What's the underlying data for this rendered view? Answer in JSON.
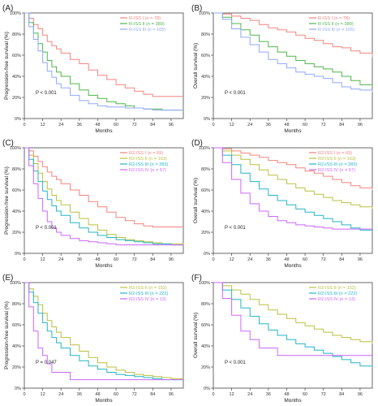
{
  "figure": {
    "x_ticks": [
      0,
      12,
      24,
      36,
      48,
      60,
      72,
      84,
      96
    ],
    "y_ticks": [
      "0%",
      "20%",
      "40%",
      "60%",
      "80%",
      "100%"
    ],
    "colors": {
      "salmon": "#f4837d",
      "green": "#4cb749",
      "blue": "#8fa8ff",
      "cyan": "#22b5c8",
      "olive": "#b9c13f",
      "purple": "#cc66ff"
    }
  },
  "chart_data": [
    {
      "panel": "(A)",
      "type": "line",
      "xlabel": "Months",
      "ylabel": "Progression-free survival (%)",
      "xlim": [
        0,
        104
      ],
      "ylim": [
        0,
        100
      ],
      "pvalue": "P < 0.001",
      "series": [
        {
          "name": "R-ISS I (n = 78)",
          "color": "#f4837d",
          "x": [
            0,
            3,
            6,
            9,
            12,
            15,
            18,
            21,
            24,
            30,
            36,
            42,
            48,
            54,
            60,
            66,
            72,
            78,
            84,
            90,
            96,
            104
          ],
          "y": [
            100,
            95,
            89,
            85,
            79,
            73,
            69,
            66,
            62,
            56,
            52,
            46,
            41,
            37,
            32,
            29,
            26,
            23,
            21,
            21,
            21,
            21
          ]
        },
        {
          "name": "R-ISS II (n = 389)",
          "color": "#4cb749",
          "x": [
            0,
            3,
            6,
            9,
            12,
            15,
            18,
            21,
            24,
            30,
            36,
            42,
            48,
            54,
            60,
            66,
            72,
            78,
            84,
            90,
            96,
            104
          ],
          "y": [
            100,
            91,
            81,
            71,
            63,
            55,
            49,
            44,
            40,
            33,
            27,
            22,
            19,
            16,
            14,
            12,
            10,
            9,
            9,
            8,
            8,
            7
          ]
        },
        {
          "name": "R-ISS III (n = 105)",
          "color": "#8fa8ff",
          "x": [
            0,
            3,
            6,
            9,
            12,
            15,
            18,
            21,
            24,
            30,
            36,
            42,
            48,
            54,
            60,
            66,
            72,
            78,
            84,
            90,
            96,
            104
          ],
          "y": [
            100,
            87,
            75,
            64,
            53,
            45,
            39,
            33,
            29,
            22,
            17,
            14,
            12,
            11,
            11,
            10,
            10,
            9,
            8,
            8,
            8,
            8
          ]
        }
      ]
    },
    {
      "panel": "(B)",
      "type": "line",
      "xlabel": "Months",
      "ylabel": "Overall survival (%)",
      "xlim": [
        0,
        104
      ],
      "ylim": [
        0,
        100
      ],
      "pvalue": "P < 0.001",
      "series": [
        {
          "name": "R-ISS I (n = 78)",
          "color": "#f4837d",
          "x": [
            0,
            6,
            12,
            18,
            24,
            30,
            36,
            42,
            48,
            54,
            60,
            66,
            72,
            78,
            84,
            90,
            96,
            104
          ],
          "y": [
            100,
            99,
            97,
            95,
            93,
            89,
            86,
            84,
            82,
            79,
            76,
            74,
            71,
            68,
            67,
            64,
            62,
            58
          ]
        },
        {
          "name": "R-ISS II (n = 389)",
          "color": "#4cb749",
          "x": [
            0,
            6,
            12,
            18,
            24,
            30,
            36,
            42,
            48,
            54,
            60,
            66,
            72,
            78,
            84,
            90,
            96,
            104
          ],
          "y": [
            100,
            96,
            90,
            84,
            79,
            73,
            68,
            63,
            59,
            55,
            52,
            49,
            47,
            44,
            40,
            36,
            32,
            31
          ]
        },
        {
          "name": "R-ISS III (n = 105)",
          "color": "#8fa8ff",
          "x": [
            0,
            6,
            12,
            18,
            24,
            30,
            36,
            42,
            48,
            54,
            60,
            66,
            72,
            78,
            84,
            90,
            96,
            104
          ],
          "y": [
            100,
            94,
            85,
            77,
            70,
            63,
            56,
            52,
            48,
            44,
            42,
            40,
            38,
            34,
            30,
            28,
            27,
            25
          ]
        }
      ]
    },
    {
      "panel": "(C)",
      "type": "line",
      "xlabel": "Months",
      "ylabel": "Progression-free survival (%)",
      "xlim": [
        0,
        104
      ],
      "ylim": [
        0,
        100
      ],
      "pvalue": "P < 0.001",
      "series": [
        {
          "name": "R2-ISS I (n = 69)",
          "color": "#f4837d",
          "x": [
            0,
            3,
            6,
            9,
            12,
            15,
            18,
            21,
            24,
            30,
            36,
            42,
            48,
            54,
            60,
            66,
            72,
            78,
            84,
            90,
            96,
            104
          ],
          "y": [
            100,
            97,
            92,
            87,
            82,
            77,
            73,
            70,
            66,
            60,
            55,
            49,
            44,
            39,
            34,
            31,
            28,
            26,
            25,
            25,
            25,
            25
          ]
        },
        {
          "name": "R2-ISS II (n = 163)",
          "color": "#b9c13f",
          "x": [
            0,
            3,
            6,
            9,
            12,
            15,
            18,
            21,
            24,
            30,
            36,
            42,
            48,
            54,
            60,
            66,
            72,
            78,
            84,
            90,
            96,
            104
          ],
          "y": [
            100,
            93,
            85,
            76,
            68,
            61,
            55,
            50,
            46,
            39,
            33,
            27,
            22,
            18,
            15,
            13,
            12,
            11,
            10,
            9,
            9,
            8
          ]
        },
        {
          "name": "R2-ISS III (n = 283)",
          "color": "#22b5c8",
          "x": [
            0,
            3,
            6,
            9,
            12,
            15,
            18,
            21,
            24,
            30,
            36,
            42,
            48,
            54,
            60,
            66,
            72,
            78,
            84,
            90,
            96,
            104
          ],
          "y": [
            100,
            89,
            78,
            68,
            59,
            51,
            45,
            40,
            36,
            29,
            24,
            20,
            17,
            15,
            13,
            12,
            11,
            10,
            9,
            9,
            8,
            8
          ]
        },
        {
          "name": "R2-ISS IV (n = 57)",
          "color": "#cc66ff",
          "x": [
            0,
            3,
            6,
            9,
            12,
            15,
            18,
            21,
            24,
            30,
            36,
            42,
            48,
            54,
            60,
            66,
            72,
            78,
            84,
            90,
            96,
            104
          ],
          "y": [
            100,
            83,
            66,
            52,
            40,
            30,
            24,
            20,
            17,
            14,
            12,
            11,
            10,
            9,
            8,
            8,
            8,
            8,
            8,
            8,
            8,
            8
          ]
        }
      ]
    },
    {
      "panel": "(D)",
      "type": "line",
      "xlabel": "Months",
      "ylabel": "Overall survival (%)",
      "xlim": [
        0,
        104
      ],
      "ylim": [
        0,
        100
      ],
      "pvalue": "P < 0.001",
      "series": [
        {
          "name": "R2-ISS I (n = 69)",
          "color": "#f4837d",
          "x": [
            0,
            6,
            12,
            18,
            24,
            30,
            36,
            42,
            48,
            54,
            60,
            66,
            72,
            78,
            84,
            90,
            96,
            104
          ],
          "y": [
            100,
            99,
            97,
            95,
            93,
            91,
            88,
            86,
            84,
            81,
            78,
            76,
            73,
            70,
            67,
            64,
            62,
            60
          ]
        },
        {
          "name": "R2-ISS II (n = 163)",
          "color": "#b9c13f",
          "x": [
            0,
            6,
            12,
            18,
            24,
            30,
            36,
            42,
            48,
            54,
            60,
            66,
            72,
            78,
            84,
            90,
            96,
            104
          ],
          "y": [
            100,
            97,
            93,
            89,
            84,
            79,
            74,
            70,
            66,
            62,
            59,
            56,
            53,
            50,
            48,
            46,
            44,
            42
          ]
        },
        {
          "name": "R2-ISS III (n = 283)",
          "color": "#22b5c8",
          "x": [
            0,
            6,
            12,
            18,
            24,
            30,
            36,
            42,
            48,
            54,
            60,
            66,
            72,
            78,
            84,
            90,
            96,
            104
          ],
          "y": [
            100,
            93,
            84,
            76,
            68,
            61,
            55,
            50,
            46,
            42,
            39,
            36,
            33,
            30,
            27,
            24,
            22,
            22
          ]
        },
        {
          "name": "R2-ISS IV (n = 57)",
          "color": "#cc66ff",
          "x": [
            0,
            6,
            12,
            18,
            24,
            30,
            36,
            42,
            48,
            54,
            60,
            66,
            72,
            78,
            84,
            90,
            96,
            104
          ],
          "y": [
            100,
            86,
            70,
            57,
            47,
            40,
            35,
            31,
            29,
            27,
            26,
            25,
            24,
            23,
            23,
            23,
            23,
            23
          ]
        }
      ]
    },
    {
      "panel": "(E)",
      "type": "line",
      "xlabel": "Months",
      "ylabel": "Progression-free survival (%)",
      "xlim": [
        0,
        104
      ],
      "ylim": [
        0,
        100
      ],
      "pvalue": "P = 0.047",
      "series": [
        {
          "name": "R2-ISS II (n = 152)",
          "color": "#b9c13f",
          "x": [
            0,
            3,
            6,
            9,
            12,
            15,
            18,
            21,
            24,
            30,
            36,
            42,
            48,
            54,
            60,
            66,
            72,
            78,
            84,
            90,
            96,
            104
          ],
          "y": [
            100,
            94,
            87,
            79,
            71,
            64,
            58,
            53,
            48,
            41,
            35,
            29,
            24,
            20,
            17,
            15,
            13,
            12,
            11,
            10,
            9,
            9
          ]
        },
        {
          "name": "R2-ISS III (n = 222)",
          "color": "#22b5c8",
          "x": [
            0,
            3,
            6,
            9,
            12,
            15,
            18,
            21,
            24,
            30,
            36,
            42,
            48,
            54,
            60,
            66,
            72,
            78,
            84,
            90,
            96,
            104
          ],
          "y": [
            100,
            91,
            81,
            71,
            62,
            54,
            48,
            43,
            38,
            31,
            26,
            21,
            18,
            15,
            13,
            12,
            11,
            10,
            9,
            8,
            8,
            8
          ]
        },
        {
          "name": "R2-ISS IV (n = 13)",
          "color": "#cc66ff",
          "x": [
            0,
            3,
            6,
            9,
            12,
            15,
            18,
            21,
            24,
            30,
            36,
            42,
            48,
            54,
            60,
            66,
            72,
            78,
            84,
            90,
            96,
            104
          ],
          "y": [
            100,
            77,
            54,
            38,
            31,
            23,
            15,
            15,
            15,
            8,
            8,
            8,
            8,
            8,
            8,
            8,
            8,
            8,
            8,
            8,
            8,
            8
          ]
        }
      ]
    },
    {
      "panel": "(F)",
      "type": "line",
      "xlabel": "Months",
      "ylabel": "Overall survival (%)",
      "xlim": [
        0,
        104
      ],
      "ylim": [
        0,
        100
      ],
      "pvalue": "P < 0.001",
      "series": [
        {
          "name": "R2-ISS II (n = 152)",
          "color": "#b9c13f",
          "x": [
            0,
            6,
            12,
            18,
            24,
            30,
            36,
            42,
            48,
            54,
            60,
            66,
            72,
            78,
            84,
            90,
            96,
            104
          ],
          "y": [
            100,
            97,
            93,
            89,
            84,
            79,
            74,
            70,
            66,
            62,
            59,
            56,
            53,
            50,
            48,
            46,
            44,
            42
          ]
        },
        {
          "name": "R2-ISS III (n = 222)",
          "color": "#22b5c8",
          "x": [
            0,
            6,
            12,
            18,
            24,
            30,
            36,
            42,
            48,
            54,
            60,
            66,
            72,
            78,
            84,
            90,
            96,
            104
          ],
          "y": [
            100,
            93,
            84,
            76,
            68,
            61,
            55,
            50,
            46,
            42,
            39,
            36,
            33,
            30,
            27,
            24,
            21,
            20
          ]
        },
        {
          "name": "R2-ISS IV (n = 13)",
          "color": "#cc66ff",
          "x": [
            0,
            6,
            12,
            18,
            24,
            30,
            36,
            42,
            48,
            54,
            60,
            66,
            72,
            78,
            84,
            90,
            96,
            104
          ],
          "y": [
            100,
            85,
            69,
            54,
            46,
            38,
            38,
            31,
            31,
            31,
            31,
            31,
            31,
            31,
            31,
            31,
            31,
            31
          ]
        }
      ]
    }
  ]
}
